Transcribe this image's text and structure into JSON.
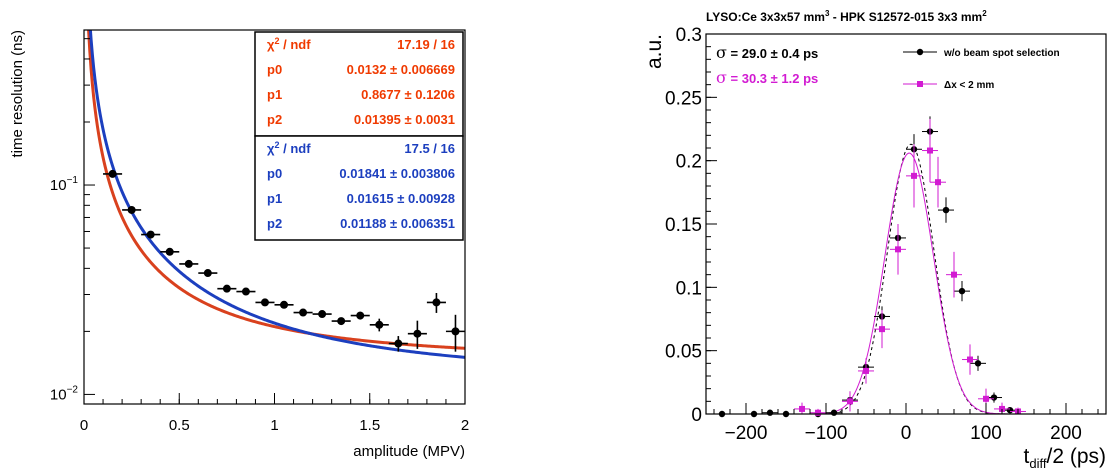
{
  "chart_data": [
    {
      "type": "scatter",
      "title": "",
      "xlabel": "amplitude (MPV)",
      "ylabel": "time resolution  (ns)",
      "xlim": [
        0,
        2
      ],
      "ylim": [
        0.009,
        0.55
      ],
      "yscale": "log",
      "grid": false,
      "xticks": [
        {
          "v": 0,
          "label": "0"
        },
        {
          "v": 0.5,
          "label": "0.5"
        },
        {
          "v": 1,
          "label": "1"
        },
        {
          "v": 1.5,
          "label": "1.5"
        },
        {
          "v": 2,
          "label": "2"
        }
      ],
      "yticks": [
        {
          "v": 0.01,
          "base": "10",
          "exp": "−2"
        },
        {
          "v": 0.1,
          "base": "10",
          "exp": "−1"
        }
      ],
      "points": [
        {
          "x": 0.15,
          "y": 0.113,
          "xerr": 0.05,
          "yerr": 0.004
        },
        {
          "x": 0.25,
          "y": 0.076,
          "xerr": 0.05,
          "yerr": 0.002
        },
        {
          "x": 0.35,
          "y": 0.058,
          "xerr": 0.05,
          "yerr": 0.002
        },
        {
          "x": 0.45,
          "y": 0.048,
          "xerr": 0.05,
          "yerr": 0.001
        },
        {
          "x": 0.55,
          "y": 0.042,
          "xerr": 0.05,
          "yerr": 0.001
        },
        {
          "x": 0.65,
          "y": 0.038,
          "xerr": 0.05,
          "yerr": 0.001
        },
        {
          "x": 0.75,
          "y": 0.032,
          "xerr": 0.05,
          "yerr": 0.001
        },
        {
          "x": 0.85,
          "y": 0.031,
          "xerr": 0.05,
          "yerr": 0.001
        },
        {
          "x": 0.95,
          "y": 0.0275,
          "xerr": 0.05,
          "yerr": 0.0007
        },
        {
          "x": 1.05,
          "y": 0.0268,
          "xerr": 0.05,
          "yerr": 0.0007
        },
        {
          "x": 1.15,
          "y": 0.0246,
          "xerr": 0.05,
          "yerr": 0.0007
        },
        {
          "x": 1.25,
          "y": 0.0242,
          "xerr": 0.05,
          "yerr": 0.0008
        },
        {
          "x": 1.35,
          "y": 0.0224,
          "xerr": 0.05,
          "yerr": 0.0008
        },
        {
          "x": 1.45,
          "y": 0.0238,
          "xerr": 0.05,
          "yerr": 0.001
        },
        {
          "x": 1.55,
          "y": 0.0215,
          "xerr": 0.05,
          "yerr": 0.0015
        },
        {
          "x": 1.65,
          "y": 0.0175,
          "xerr": 0.05,
          "yerr": 0.0015
        },
        {
          "x": 1.75,
          "y": 0.0195,
          "xerr": 0.05,
          "yerr": 0.003
        },
        {
          "x": 1.85,
          "y": 0.0275,
          "xerr": 0.05,
          "yerr": 0.003
        },
        {
          "x": 1.95,
          "y": 0.02,
          "xerr": 0.05,
          "yerr": 0.004
        }
      ],
      "fits": [
        {
          "color": "#d9411e",
          "p0": 0.0132,
          "p1": 0.8677,
          "p2": 0.01395
        },
        {
          "color": "#1c3fbf",
          "p0": 0.01841,
          "p1": 0.01615,
          "p2": 0.01188
        }
      ],
      "stat_boxes": [
        {
          "color": "#f03a00",
          "rows": [
            {
              "label_main": "χ",
              "label_sup": "2",
              "label_rest": " / ndf",
              "value": "17.19 / 16"
            },
            {
              "label_main": "p0",
              "value": "0.0132 ± 0.006669"
            },
            {
              "label_main": "p1",
              "value": "0.8677 ± 0.1206"
            },
            {
              "label_main": "p2",
              "value": "0.01395 ± 0.0031"
            }
          ]
        },
        {
          "color": "#1c3fbf",
          "rows": [
            {
              "label_main": "χ",
              "label_sup": "2",
              "label_rest": " / ndf",
              "value": "17.5 / 16"
            },
            {
              "label_main": "p0",
              "value": "0.01841 ± 0.003806"
            },
            {
              "label_main": "p1",
              "value": "0.01615 ± 0.00928"
            },
            {
              "label_main": "p2",
              "value": "0.01188 ± 0.006351"
            }
          ]
        }
      ]
    },
    {
      "type": "scatter",
      "title": {
        "pre": "LYSO:Ce 3x3x57 mm",
        "sup1": "3",
        "mid": " - HPK S12572-015 3x3 mm",
        "sup2": "2"
      },
      "xlabel": {
        "main": "t",
        "sub": "diff",
        "rest": "/2 (ps)"
      },
      "ylabel": "a.u.",
      "xlim": [
        -250,
        250
      ],
      "ylim": [
        0,
        0.3
      ],
      "grid": false,
      "xticks": [
        {
          "v": -200,
          "label": "−200"
        },
        {
          "v": -100,
          "label": "−100"
        },
        {
          "v": 0,
          "label": "0"
        },
        {
          "v": 100,
          "label": "100"
        },
        {
          "v": 200,
          "label": "200"
        }
      ],
      "yticks": [
        {
          "v": 0,
          "label": "0"
        },
        {
          "v": 0.05,
          "label": "0.05"
        },
        {
          "v": 0.1,
          "label": "0.1"
        },
        {
          "v": 0.15,
          "label": "0.15"
        },
        {
          "v": 0.2,
          "label": "0.2"
        },
        {
          "v": 0.25,
          "label": "0.25"
        },
        {
          "v": 0.3,
          "label": "0.3"
        }
      ],
      "annotations": [
        {
          "color": "#000000",
          "text": " = 29.0  ± 0.4 ps"
        },
        {
          "color": "#d21bd2",
          "text": " = 30.3  ± 1.2 ps"
        }
      ],
      "legend_position": "top-right",
      "series": [
        {
          "name": "w/o beam spot selection",
          "color": "#000000",
          "marker": "circle",
          "fit": {
            "mean": 6,
            "sigma": 29.0,
            "amp": 0.213,
            "style": "dashed"
          },
          "points": [
            {
              "x": -230,
              "y": 0,
              "yerr": 0
            },
            {
              "x": -190,
              "y": 0,
              "yerr": 0
            },
            {
              "x": -170,
              "y": 0.001,
              "yerr": 0.002
            },
            {
              "x": -150,
              "y": 0,
              "yerr": 0
            },
            {
              "x": -110,
              "y": 0,
              "yerr": 0
            },
            {
              "x": -90,
              "y": 0.001,
              "yerr": 0.002
            },
            {
              "x": -70,
              "y": 0.011,
              "yerr": 0.004
            },
            {
              "x": -50,
              "y": 0.037,
              "yerr": 0.006
            },
            {
              "x": -30,
              "y": 0.077,
              "yerr": 0.008
            },
            {
              "x": -10,
              "y": 0.139,
              "yerr": 0.01
            },
            {
              "x": 10,
              "y": 0.209,
              "yerr": 0.012
            },
            {
              "x": 30,
              "y": 0.223,
              "yerr": 0.012
            },
            {
              "x": 50,
              "y": 0.161,
              "yerr": 0.01
            },
            {
              "x": 70,
              "y": 0.097,
              "yerr": 0.008
            },
            {
              "x": 90,
              "y": 0.04,
              "yerr": 0.006
            },
            {
              "x": 110,
              "y": 0.013,
              "yerr": 0.004
            },
            {
              "x": 130,
              "y": 0.003,
              "yerr": 0.002
            }
          ]
        },
        {
          "name": "Δx < 2 mm",
          "color": "#d21bd2",
          "marker": "square",
          "fit": {
            "mean": 4,
            "sigma": 30.3,
            "amp": 0.206,
            "style": "solid"
          },
          "points": [
            {
              "x": -130,
              "y": 0.004,
              "yerr": 0.005
            },
            {
              "x": -110,
              "y": 0.001,
              "yerr": 0.003
            },
            {
              "x": -70,
              "y": 0.01,
              "yerr": 0.008
            },
            {
              "x": -50,
              "y": 0.034,
              "yerr": 0.01
            },
            {
              "x": -30,
              "y": 0.067,
              "yerr": 0.015
            },
            {
              "x": -10,
              "y": 0.13,
              "yerr": 0.02
            },
            {
              "x": 10,
              "y": 0.188,
              "yerr": 0.025
            },
            {
              "x": 30,
              "y": 0.208,
              "yerr": 0.025
            },
            {
              "x": 40,
              "y": 0.183,
              "yerr": 0.02
            },
            {
              "x": 60,
              "y": 0.11,
              "yerr": 0.018
            },
            {
              "x": 80,
              "y": 0.043,
              "yerr": 0.012
            },
            {
              "x": 100,
              "y": 0.012,
              "yerr": 0.008
            },
            {
              "x": 120,
              "y": 0.004,
              "yerr": 0.005
            },
            {
              "x": 140,
              "y": 0.002,
              "yerr": 0.003
            }
          ]
        }
      ]
    }
  ]
}
